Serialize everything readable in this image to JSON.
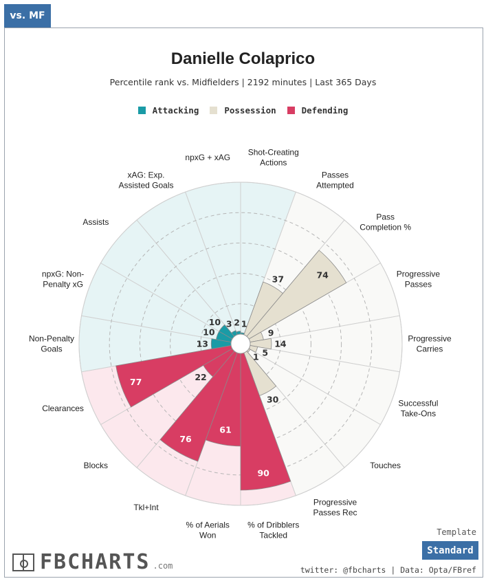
{
  "tab": {
    "label": "vs. MF"
  },
  "header": {
    "title": "Danielle Colaprico",
    "subtitle": "Percentile rank vs. Midfielders | 2192 minutes | Last 365 Days"
  },
  "legend": [
    {
      "label": "Attacking",
      "color": "#1a9ba6"
    },
    {
      "label": "Possession",
      "color": "#e5e0d0"
    },
    {
      "label": "Defending",
      "color": "#d83d63"
    }
  ],
  "chart_data": {
    "type": "polar-bar",
    "range": [
      0,
      100
    ],
    "categories": [
      {
        "label": [
          "Shot-Creating",
          "Actions"
        ],
        "group": "Attacking",
        "value": 1
      },
      {
        "label": [
          "Passes",
          "Attempted"
        ],
        "group": "Possession",
        "value": 37
      },
      {
        "label": [
          "Pass",
          "Completion %"
        ],
        "group": "Possession",
        "value": 74
      },
      {
        "label": [
          "Progressive",
          "Passes"
        ],
        "group": "Possession",
        "value": 9
      },
      {
        "label": [
          "Progressive",
          "Carries"
        ],
        "group": "Possession",
        "value": 14
      },
      {
        "label": [
          "Successful",
          "Take-Ons"
        ],
        "group": "Possession",
        "value": 5
      },
      {
        "label": [
          "Touches"
        ],
        "group": "Possession",
        "value": 1
      },
      {
        "label": [
          "Progressive",
          "Passes Rec"
        ],
        "group": "Possession",
        "value": 30
      },
      {
        "label": [
          "% of Dribblers",
          "Tackled"
        ],
        "group": "Defending",
        "value": 90
      },
      {
        "label": [
          "% of Aerials",
          "Won"
        ],
        "group": "Defending",
        "value": 61
      },
      {
        "label": [
          "Tkl+Int"
        ],
        "group": "Defending",
        "value": 76
      },
      {
        "label": [
          "Blocks"
        ],
        "group": "Defending",
        "value": 22
      },
      {
        "label": [
          "Clearances"
        ],
        "group": "Defending",
        "value": 77
      },
      {
        "label": [
          "Non-Penalty",
          "Goals"
        ],
        "group": "Attacking",
        "value": 13
      },
      {
        "label": [
          "npxG: Non-",
          "Penalty xG"
        ],
        "group": "Attacking",
        "value": 10
      },
      {
        "label": [
          "Assists"
        ],
        "group": "Attacking",
        "value": 10
      },
      {
        "label": [
          "xAG: Exp.",
          "Assisted Goals"
        ],
        "group": "Attacking",
        "value": 3
      },
      {
        "label": [
          "npxG + xAG"
        ],
        "group": "Attacking",
        "value": 2
      }
    ],
    "group_colors": {
      "Attacking": {
        "bar": "#1a9ba6",
        "bg": "#e6f4f5",
        "text": "#333333"
      },
      "Possession": {
        "bar": "#e5e0d0",
        "bg": "#f9f9f7",
        "text": "#333333"
      },
      "Defending": {
        "bar": "#d83d63",
        "bg": "#fce8ed",
        "text": "#ffffff"
      }
    }
  },
  "footer": {
    "logo_text": "FBCHARTS",
    "logo_suffix": ".com",
    "template_label": "Template",
    "template_button": "Standard",
    "credit": "twitter: @fbcharts | Data: Opta/FBref"
  }
}
